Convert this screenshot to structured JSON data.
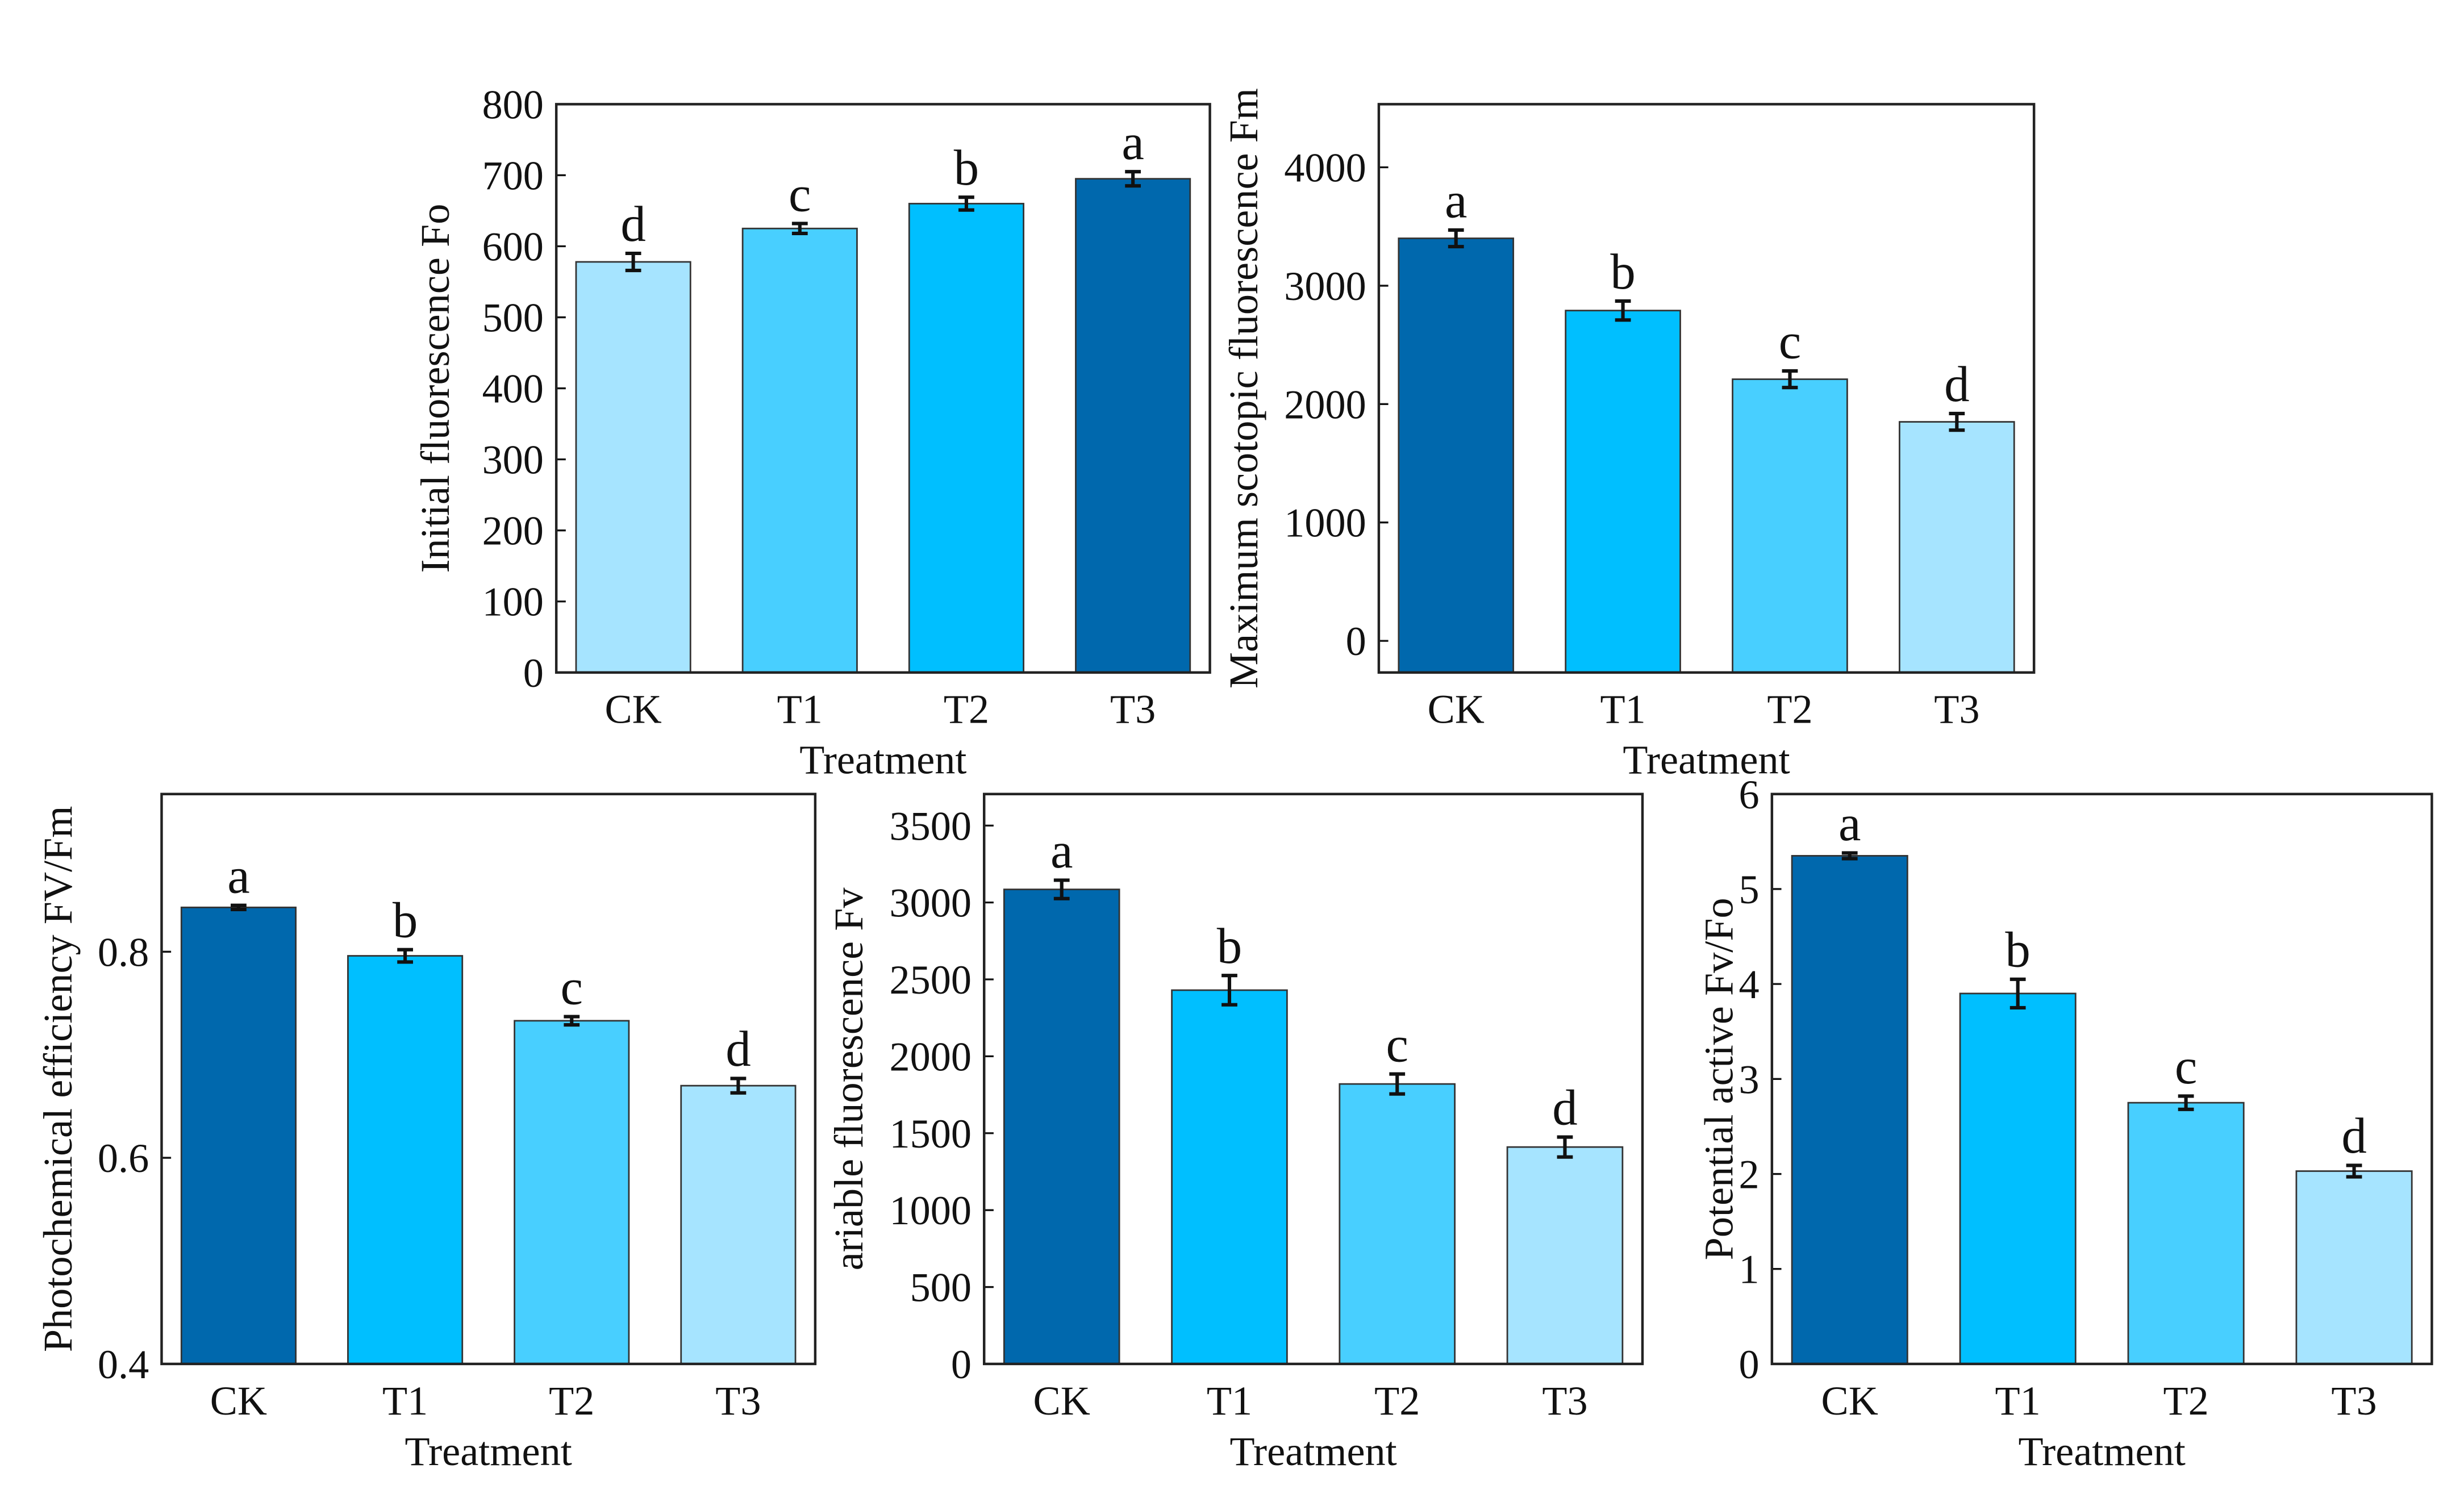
{
  "colors": {
    "CK_dark": "#0068AD",
    "T1": "#00BFFF",
    "T2": "#48CFFF",
    "T3": "#A6E4FF"
  },
  "chart_data": [
    {
      "type": "bar",
      "id": "fo",
      "title": "",
      "xlabel": "Treatment",
      "ylabel": "Initial fluorescence Fo",
      "categories": [
        "CK",
        "T1",
        "T2",
        "T3"
      ],
      "values": [
        578,
        625,
        660,
        695
      ],
      "errors": [
        12,
        7,
        9,
        10
      ],
      "letters": [
        "d",
        "c",
        "b",
        "a"
      ],
      "bar_colors": [
        "#A6E4FF",
        "#48CFFF",
        "#00BFFF",
        "#0068AD"
      ],
      "ylim": [
        0,
        800
      ],
      "yticks": [
        0,
        100,
        200,
        300,
        400,
        500,
        600,
        700,
        800
      ],
      "ytick_labels": [
        "0",
        "100",
        "200",
        "300",
        "400",
        "500",
        "600",
        "700",
        "800"
      ]
    },
    {
      "type": "bar",
      "id": "fm",
      "xlabel": "Treatment",
      "ylabel": "Maximum scotopic fluorescence Fm",
      "categories": [
        "CK",
        "T1",
        "T2",
        "T3"
      ],
      "values": [
        3400,
        2790,
        2210,
        1850
      ],
      "errors": [
        70,
        80,
        70,
        70
      ],
      "letters": [
        "a",
        "b",
        "c",
        "d"
      ],
      "bar_colors": [
        "#0068AD",
        "#00BFFF",
        "#48CFFF",
        "#A6E4FF"
      ],
      "ylim": [
        -267,
        4533
      ],
      "yticks": [
        0,
        1000,
        2000,
        3000,
        4000
      ],
      "ytick_labels": [
        "0",
        "1000",
        "2000",
        "3000",
        "4000"
      ]
    },
    {
      "type": "bar",
      "id": "fvfm",
      "xlabel": "Treatment",
      "ylabel": "Photochemical efficiency FV/Fm",
      "categories": [
        "CK",
        "T1",
        "T2",
        "T3"
      ],
      "values": [
        0.843,
        0.796,
        0.733,
        0.67
      ],
      "errors": [
        0.002,
        0.006,
        0.004,
        0.007
      ],
      "letters": [
        "a",
        "b",
        "c",
        "d"
      ],
      "bar_colors": [
        "#0068AD",
        "#00BFFF",
        "#48CFFF",
        "#A6E4FF"
      ],
      "ylim": [
        0.4,
        0.953
      ],
      "yticks": [
        0.4,
        0.6,
        0.8
      ],
      "ytick_labels": [
        "0.4",
        "0.6",
        "0.8"
      ]
    },
    {
      "type": "bar",
      "id": "fv",
      "xlabel": "Treatment",
      "ylabel": "ariable fluorescence Fv",
      "categories": [
        "CK",
        "T1",
        "T2",
        "T3"
      ],
      "values": [
        3085,
        2430,
        1820,
        1410
      ],
      "errors": [
        60,
        95,
        65,
        65
      ],
      "letters": [
        "a",
        "b",
        "c",
        "d"
      ],
      "bar_colors": [
        "#0068AD",
        "#00BFFF",
        "#48CFFF",
        "#A6E4FF"
      ],
      "ylim": [
        0,
        3705
      ],
      "yticks": [
        0,
        500,
        1000,
        1500,
        2000,
        2500,
        3000,
        3500
      ],
      "ytick_labels": [
        "0",
        "500",
        "1000",
        "1500",
        "2000",
        "2500",
        "3000",
        "3500"
      ]
    },
    {
      "type": "bar",
      "id": "fvfo",
      "xlabel": "Treatment",
      "ylabel": "Potential active Fv/Fo",
      "categories": [
        "CK",
        "T1",
        "T2",
        "T3"
      ],
      "values": [
        5.35,
        3.9,
        2.75,
        2.03
      ],
      "errors": [
        0.03,
        0.15,
        0.07,
        0.06
      ],
      "letters": [
        "a",
        "b",
        "c",
        "d"
      ],
      "bar_colors": [
        "#0068AD",
        "#00BFFF",
        "#48CFFF",
        "#A6E4FF"
      ],
      "ylim": [
        0,
        6
      ],
      "yticks": [
        0,
        1,
        2,
        3,
        4,
        5,
        6
      ],
      "ytick_labels": [
        "0",
        "1",
        "2",
        "3",
        "4",
        "5",
        "6"
      ]
    }
  ]
}
